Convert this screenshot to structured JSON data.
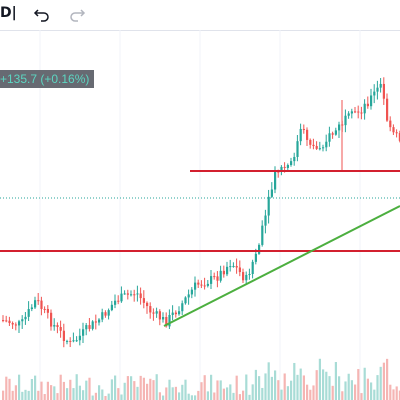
{
  "toolbar": {
    "clipped_label": "D|",
    "undo_icon": "undo-icon",
    "redo_icon": "redo-icon"
  },
  "price_change": {
    "text": "+135.7 (+0.16%)"
  },
  "colors": {
    "up_candle": "#26a69a",
    "down_candle": "#ef5350",
    "support_resistance": "#d3202f",
    "trendline": "#4caf3f",
    "dotted_level": "#26a69a",
    "grid": "#f0f3fa",
    "badge_bg": "#676a72"
  },
  "chart_data": {
    "type": "candlestick",
    "drawings": [
      {
        "kind": "horizontal-line",
        "name": "upper level"
      },
      {
        "kind": "horizontal-line",
        "name": "lower level"
      },
      {
        "kind": "trendline",
        "name": "ascending trendline"
      },
      {
        "kind": "dotted-line",
        "name": "current price level"
      }
    ]
  }
}
